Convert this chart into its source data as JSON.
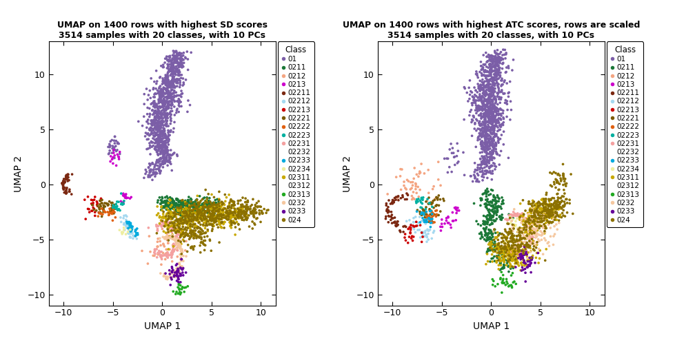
{
  "title1": "UMAP on 1400 rows with highest SD scores\n3514 samples with 20 classes, with 10 PCs",
  "title2": "UMAP on 1400 rows with highest ATC scores, rows are scaled\n3514 samples with 20 classes, with 10 PCs",
  "xlabel": "UMAP 1",
  "ylabel": "UMAP 2",
  "xlim": [
    -11.5,
    11.5
  ],
  "ylim": [
    -11.0,
    13.0
  ],
  "xticks": [
    -10,
    -5,
    0,
    5,
    10
  ],
  "yticks": [
    -10,
    -5,
    0,
    5,
    10
  ],
  "classes": [
    "01",
    "0211",
    "0212",
    "0213",
    "02211",
    "02212",
    "02213",
    "02221",
    "02222",
    "02223",
    "02231",
    "02232",
    "02233",
    "02234",
    "02311",
    "02312",
    "02313",
    "0232",
    "0233",
    "024"
  ],
  "colors": {
    "01": "#7B5EA7",
    "0211": "#1B7837",
    "0212": "#F4A582",
    "0213": "#CC00CC",
    "02211": "#7B2811",
    "02212": "#A6D9F0",
    "02213": "#CC0000",
    "02221": "#7B5A00",
    "02222": "#E06010",
    "02223": "#00B0A0",
    "02231": "#F4A0A0",
    "02232": "#FFFFFF",
    "02233": "#00AADD",
    "02234": "#EEEEA0",
    "02311": "#C8A800",
    "02312": "#FFFFFF",
    "02313": "#22AA22",
    "0232": "#F5C8A0",
    "0233": "#660099",
    "024": "#8B7000"
  },
  "dot_size": 7,
  "figsize": [
    10.08,
    5.04
  ],
  "dpi": 100
}
